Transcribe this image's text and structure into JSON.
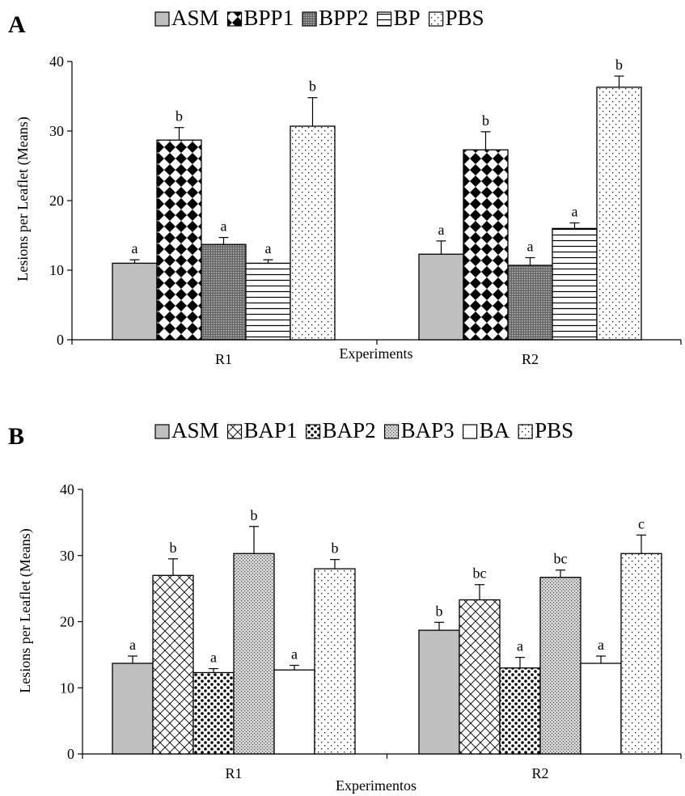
{
  "chart_data": [
    {
      "panel_label": "A",
      "type": "bar",
      "title": "",
      "xlabel": "Experiments",
      "ylabel": "Lesions per Leaflet (Means)",
      "ylim": [
        0,
        40
      ],
      "yticks": [
        0,
        10,
        20,
        30,
        40
      ],
      "categories": [
        "R1",
        "R2"
      ],
      "legend_position": "top",
      "grid": false,
      "series": [
        {
          "name": "ASM",
          "fill": "#bfbfbf",
          "pattern": "solid",
          "values": [
            11.0,
            12.3
          ],
          "errors": [
            0.5,
            1.9
          ],
          "letters": [
            "a",
            "a"
          ]
        },
        {
          "name": "BPP1",
          "fill": "#000000",
          "pattern": "diamond-checker",
          "values": [
            28.7,
            27.3
          ],
          "errors": [
            1.8,
            2.6
          ],
          "letters": [
            "b",
            "b"
          ]
        },
        {
          "name": "BPP2",
          "fill": "#7f7f7f",
          "pattern": "dense-grid",
          "values": [
            13.7,
            10.7
          ],
          "errors": [
            1.0,
            1.1
          ],
          "letters": [
            "a",
            "a"
          ]
        },
        {
          "name": "BP",
          "fill": "#ffffff",
          "pattern": "horizontal-lines",
          "values": [
            11.0,
            16.0
          ],
          "errors": [
            0.5,
            0.8
          ],
          "letters": [
            "a",
            "a"
          ]
        },
        {
          "name": "PBS",
          "fill": "#ffffff",
          "pattern": "sparse-dots",
          "values": [
            30.7,
            36.3
          ],
          "errors": [
            4.1,
            1.6
          ],
          "letters": [
            "b",
            "b"
          ]
        }
      ]
    },
    {
      "panel_label": "B",
      "type": "bar",
      "title": "",
      "xlabel": "Experimentos",
      "ylabel": "Lesions per Leaflet (Means)",
      "ylim": [
        0,
        40
      ],
      "yticks": [
        0,
        10,
        20,
        30,
        40
      ],
      "categories": [
        "R1",
        "R2"
      ],
      "legend_position": "top",
      "grid": false,
      "series": [
        {
          "name": "ASM",
          "fill": "#bfbfbf",
          "pattern": "solid",
          "values": [
            13.7,
            18.7
          ],
          "errors": [
            1.1,
            1.2
          ],
          "letters": [
            "a",
            "b"
          ]
        },
        {
          "name": "BAP1",
          "fill": "#ffffff",
          "pattern": "diagonal-crosshatch",
          "values": [
            27.0,
            23.3
          ],
          "errors": [
            2.5,
            2.3
          ],
          "letters": [
            "b",
            "bc"
          ]
        },
        {
          "name": "BAP2",
          "fill": "#000000",
          "pattern": "large-dots",
          "values": [
            12.3,
            13.0
          ],
          "errors": [
            0.6,
            1.6
          ],
          "letters": [
            "a",
            "a"
          ]
        },
        {
          "name": "BAP3",
          "fill": "#bfbfbf",
          "pattern": "fine-stipple",
          "values": [
            30.3,
            26.7
          ],
          "errors": [
            4.1,
            1.1
          ],
          "letters": [
            "b",
            "bc"
          ]
        },
        {
          "name": "BA",
          "fill": "#ffffff",
          "pattern": "solid",
          "values": [
            12.7,
            13.7
          ],
          "errors": [
            0.7,
            1.1
          ],
          "letters": [
            "a",
            "a"
          ]
        },
        {
          "name": "PBS",
          "fill": "#ffffff",
          "pattern": "sparse-dots",
          "values": [
            28.0,
            30.3
          ],
          "errors": [
            1.4,
            2.8
          ],
          "letters": [
            "b",
            "c"
          ]
        }
      ]
    }
  ]
}
